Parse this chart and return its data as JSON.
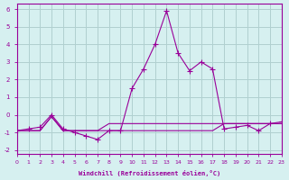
{
  "xlabel": "Windchill (Refroidissement éolien,°C)",
  "background_color": "#d6f0f0",
  "grid_color": "#b0d0d0",
  "line_color": "#990099",
  "x_values": [
    0,
    1,
    2,
    3,
    4,
    5,
    6,
    7,
    8,
    9,
    10,
    11,
    12,
    13,
    14,
    15,
    16,
    17,
    18,
    19,
    20,
    21,
    22,
    23
  ],
  "series1": [
    -0.9,
    -0.8,
    -0.7,
    0.0,
    -0.8,
    -1.0,
    -1.2,
    -1.4,
    -0.9,
    -0.9,
    1.5,
    2.6,
    4.0,
    5.9,
    3.5,
    2.5,
    3.0,
    2.6,
    -0.8,
    -0.7,
    -0.6,
    -0.9,
    -0.5,
    -0.4
  ],
  "series2": [
    -0.9,
    -0.9,
    -0.9,
    -0.1,
    -0.9,
    -0.9,
    -0.9,
    -0.9,
    -0.9,
    -0.9,
    -0.9,
    -0.9,
    -0.9,
    -0.9,
    -0.9,
    -0.9,
    -0.9,
    -0.9,
    -0.5,
    -0.5,
    -0.5,
    -0.5,
    -0.5,
    -0.5
  ],
  "series3": [
    -0.9,
    -0.9,
    -0.9,
    -0.1,
    -0.9,
    -0.9,
    -0.9,
    -0.9,
    -0.5,
    -0.5,
    -0.5,
    -0.5,
    -0.5,
    -0.5,
    -0.5,
    -0.5,
    -0.5,
    -0.5,
    -0.5,
    -0.5,
    -0.5,
    -0.5,
    -0.5,
    -0.5
  ],
  "yticks": [
    -2,
    -1,
    0,
    1,
    2,
    3,
    4,
    5,
    6
  ],
  "ytick_labels": [
    "-2",
    "-1",
    "0",
    "1",
    "2",
    "3",
    "4",
    "5",
    "6"
  ],
  "ylim": [
    -2.2,
    6.3
  ],
  "xlim": [
    0,
    23
  ]
}
